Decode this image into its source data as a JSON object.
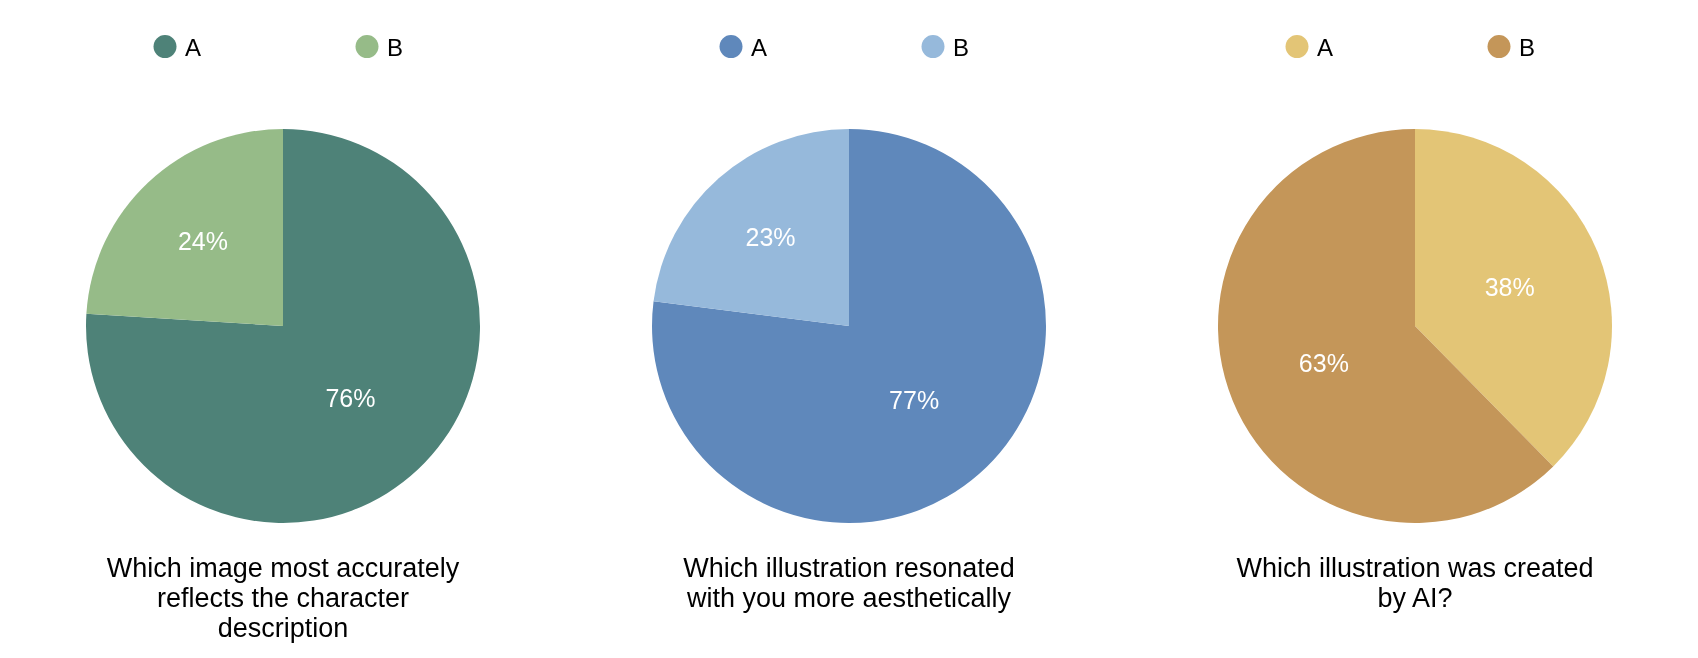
{
  "chart_data": [
    {
      "type": "pie",
      "title": "Which image most accurately reflects the character description",
      "categories": [
        "A",
        "B"
      ],
      "values": [
        76,
        24
      ],
      "colors": [
        "#4e8278",
        "#96bb88"
      ],
      "value_labels": [
        "76%",
        "24%"
      ],
      "legend": "top"
    },
    {
      "type": "pie",
      "title": "Which illustration resonated with you more aesthetically",
      "categories": [
        "A",
        "B"
      ],
      "values": [
        77,
        23
      ],
      "colors": [
        "#5f88bb",
        "#96b9db"
      ],
      "value_labels": [
        "77%",
        "23%"
      ],
      "legend": "top"
    },
    {
      "type": "pie",
      "title": "Which illustration was created by AI?",
      "categories": [
        "A",
        "B"
      ],
      "values": [
        38,
        63
      ],
      "colors": [
        "#e3c576",
        "#c49659"
      ],
      "value_labels": [
        "38%",
        "63%"
      ],
      "legend": "top"
    }
  ]
}
